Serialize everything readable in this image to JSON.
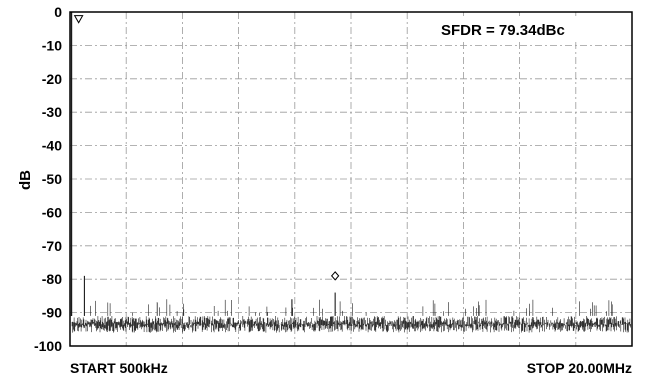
{
  "chart_data": {
    "type": "line",
    "title": "",
    "ylabel": "dB",
    "xlabel": "",
    "ylim": [
      -100,
      0
    ],
    "yticks": [
      0,
      -10,
      -20,
      -30,
      -40,
      -50,
      -60,
      -70,
      -80,
      -90,
      -100
    ],
    "ytick_labels": [
      "0",
      "-10",
      "-20",
      "-30",
      "-40",
      "-50",
      "-60",
      "-70",
      "-80",
      "-90",
      "-100"
    ],
    "xlim_mhz": [
      0.5,
      20.0
    ],
    "x_start_label": "START 500kHz",
    "x_stop_label": "STOP 20.00MHz",
    "grid": true,
    "annotation": "SFDR = 79.34dBc",
    "noise_floor_db": [
      -96,
      -91
    ],
    "fundamental": {
      "x_mhz": 0.5,
      "y_db": 0
    },
    "spurs": [
      {
        "x_mhz": 1.0,
        "y_db": -79
      },
      {
        "x_mhz": 8.2,
        "y_db": -86
      },
      {
        "x_mhz": 9.7,
        "y_db": -84
      }
    ],
    "markers": [
      {
        "shape": "triangle",
        "x_mhz": 0.8,
        "y_db": -2
      },
      {
        "shape": "diamond",
        "x_mhz": 9.7,
        "y_db": -79
      }
    ],
    "colors": {
      "trace": "#1a1a1a",
      "grid": "#9a9a9a",
      "frame": "#000000"
    }
  }
}
